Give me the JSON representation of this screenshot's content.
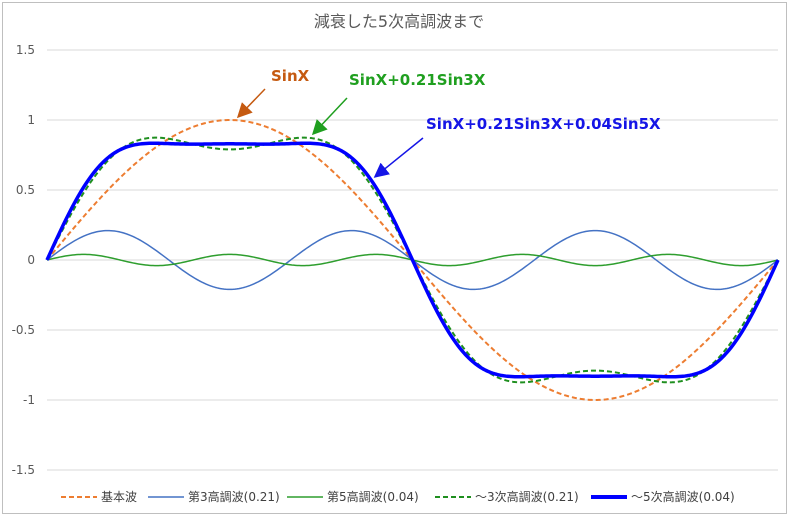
{
  "chart_data": {
    "type": "line",
    "title": "減衰した5次高調波まで",
    "xlabel": "",
    "ylabel": "",
    "x_range_radians": [
      0,
      6.2832
    ],
    "ylim": [
      -1.5,
      1.5
    ],
    "yticks": [
      "1.5",
      "1",
      "0.5",
      "0",
      "-0.5",
      "-1",
      "-1.5"
    ],
    "gridlines": true,
    "legend_position": "bottom",
    "series": [
      {
        "name": "基本波",
        "formula": "sin(x)",
        "color": "#ED7D31",
        "style": "dashed"
      },
      {
        "name": "第3高調波(0.21)",
        "formula": "0.21*sin(3x)",
        "color": "#4472C4",
        "style": "solid"
      },
      {
        "name": "第5高調波(0.04)",
        "formula": "0.04*sin(5x)",
        "color": "#2E9E2E",
        "style": "solid"
      },
      {
        "name": "～3次高調波(0.21)",
        "formula": "sin(x)+0.21*sin(3x)",
        "color": "#1F8F1F",
        "style": "dashed"
      },
      {
        "name": "～5次高調波(0.04)",
        "formula": "sin(x)+0.21*sin(3x)+0.04*sin(5x)",
        "color": "#0000FF",
        "style": "thick"
      }
    ],
    "annotations": [
      {
        "text": "SinX",
        "color": "#C55A11"
      },
      {
        "text": "SinX+0.21Sin3X",
        "color": "#1F9F1F"
      },
      {
        "text": "SinX+0.21Sin3X+0.04Sin5X",
        "color": "#1515E6"
      }
    ]
  }
}
